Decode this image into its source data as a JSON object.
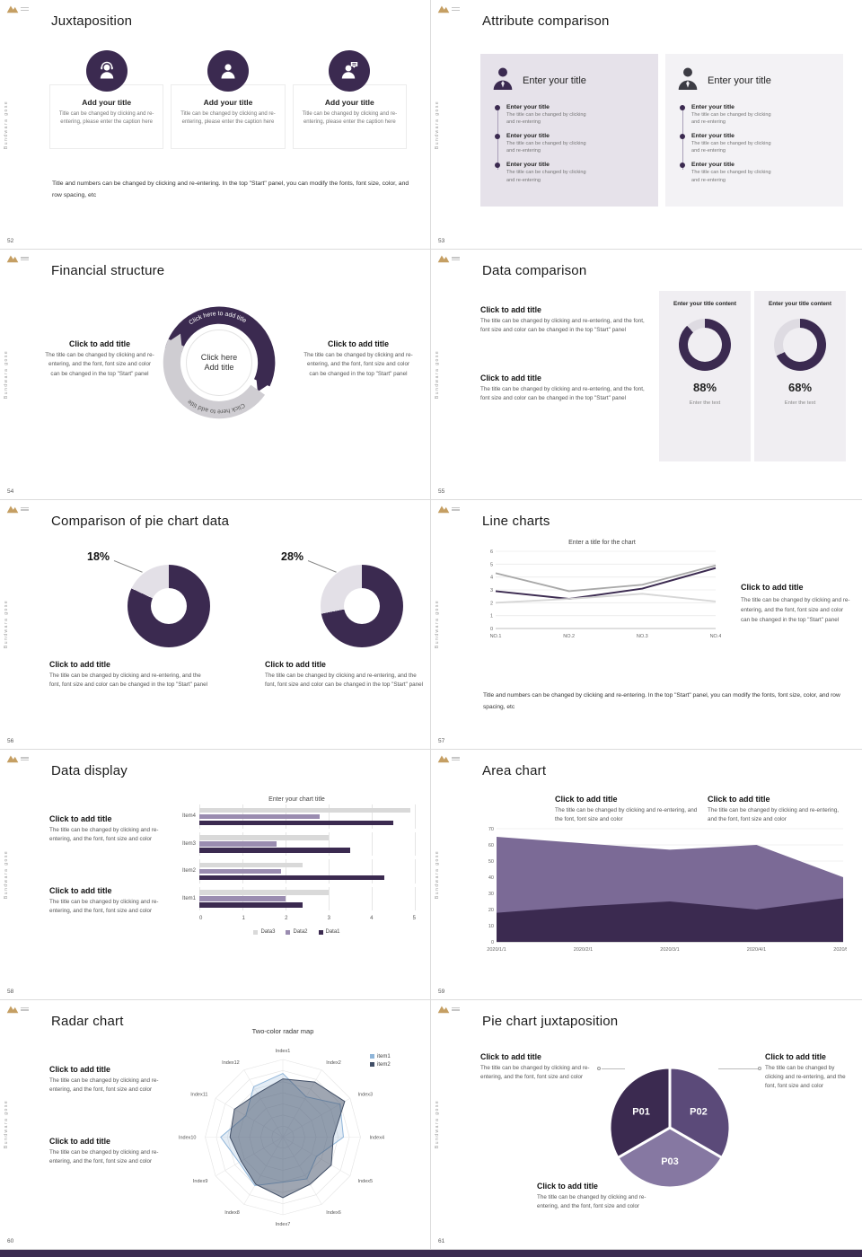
{
  "frame": {
    "vertical_text": "Bundwara gose",
    "accent_color": "#3b2a50",
    "logo_color": "#c59f63"
  },
  "slides": {
    "s52": {
      "number": "52",
      "title": "Juxtaposition",
      "cards": [
        {
          "icon": "person-headset-icon",
          "title": "Add your title",
          "caption": "Title can be changed by clicking and re-entering, please enter the caption here"
        },
        {
          "icon": "person-icon",
          "title": "Add your title",
          "caption": "Title can be changed by clicking and re-entering, please enter the caption here"
        },
        {
          "icon": "person-chat-icon",
          "title": "Add your title",
          "caption": "Title can be changed by clicking and re-entering, please enter the caption here"
        }
      ],
      "footer": "Title and numbers can be changed by clicking and re-entering. In the top \"Start\" panel, you can modify the fonts, font size, color, and row spacing, etc"
    },
    "s53": {
      "number": "53",
      "title": "Attribute comparison",
      "panels": [
        {
          "title": "Enter your title",
          "items": [
            {
              "title": "Enter your title",
              "desc": "The title can be changed by clicking and re-entering"
            },
            {
              "title": "Enter your title",
              "desc": "The title can be changed by clicking and re-entering"
            },
            {
              "title": "Enter your title",
              "desc": "The title can be changed by clicking and re-entering"
            }
          ]
        },
        {
          "title": "Enter your title",
          "items": [
            {
              "title": "Enter your title",
              "desc": "The title can be changed by clicking and re-entering"
            },
            {
              "title": "Enter your title",
              "desc": "The title can be changed by clicking and re-entering"
            },
            {
              "title": "Enter your title",
              "desc": "The title can be changed by clicking and re-entering"
            }
          ]
        }
      ]
    },
    "s54": {
      "number": "54",
      "title": "Financial structure",
      "arc_top": "Click here to add title",
      "arc_bottom": "Click here to add title",
      "center": {
        "line1": "Click here",
        "line2": "Add title"
      },
      "left": {
        "heading": "Click to add title",
        "body": "The title can be changed by clicking and re-entering, and the font, font size and color can be changed in the top \"Start\" panel"
      },
      "right": {
        "heading": "Click to add title",
        "body": "The title can be changed by clicking and re-entering, and the font, font size and color can be changed in the top \"Start\" panel"
      }
    },
    "s55": {
      "number": "55",
      "title": "Data comparison",
      "blocks": [
        {
          "heading": "Click to add title",
          "body": "The title can be changed by clicking and re-entering, and the font, font size and color can be changed in the top \"Start\" panel"
        },
        {
          "heading": "Click to add title",
          "body": "The title can be changed by clicking and re-entering, and the font, font size and color can be changed in the top \"Start\" panel"
        }
      ],
      "cards": [
        {
          "header": "Enter your title content",
          "value": 88,
          "label": "88%",
          "footer": "Enter the text",
          "color": "#3b2a50"
        },
        {
          "header": "Enter your title content",
          "value": 68,
          "label": "68%",
          "footer": "Enter the text",
          "color": "#3b2a50"
        }
      ]
    },
    "s56": {
      "number": "56",
      "title": "Comparison of pie chart data",
      "charts": [
        {
          "label": "18%",
          "value": 18,
          "color": "#3b2a50"
        },
        {
          "label": "28%",
          "value": 28,
          "color": "#3b2a50"
        }
      ],
      "blocks": [
        {
          "heading": "Click to add title",
          "body": "The title can be changed by clicking and re-entering, and the font, font size and color can be changed in the top \"Start\" panel"
        },
        {
          "heading": "Click to add title",
          "body": "The title can be changed by clicking and re-entering, and the font, font size and color can be changed in the top \"Start\" panel"
        }
      ]
    },
    "s57": {
      "number": "57",
      "title": "Line charts",
      "chart": {
        "type": "line",
        "title": "Enter a title for the chart",
        "x": [
          "NO.1",
          "NO.2",
          "NO.3",
          "NO.4"
        ],
        "ymax": 6,
        "yticks": [
          0,
          1,
          2,
          3,
          4,
          5,
          6
        ],
        "series": [
          {
            "color": "#3b2a50",
            "width": 2,
            "values": [
              2.9,
              2.3,
              3.1,
              4.7
            ]
          },
          {
            "color": "#a8a8a8",
            "width": 1.8,
            "values": [
              4.3,
              2.9,
              3.4,
              4.9
            ]
          },
          {
            "color": "#d6d6d6",
            "width": 1.8,
            "values": [
              2.0,
              2.3,
              2.7,
              2.1
            ]
          }
        ]
      },
      "block": {
        "heading": "Click to add title",
        "body": "The title can be changed by clicking and re-entering, and the font, font size and color can be changed in the top \"Start\" panel"
      },
      "footer": "Title and numbers can be changed by clicking and re-entering. In the top \"Start\" panel, you can modify the fonts, font size, color, and row spacing, etc"
    },
    "s58": {
      "number": "58",
      "title": "Data display",
      "blocks": [
        {
          "heading": "Click to add title",
          "body": "The title can be changed by clicking and re-entering, and the font, font size and color"
        },
        {
          "heading": "Click to add title",
          "body": "The title can be changed by clicking and re-entering, and the font, font size and color"
        }
      ],
      "chart": {
        "type": "bar",
        "title": "Enter your chart title",
        "categories": [
          "Item1",
          "Item2",
          "Item3",
          "Item4"
        ],
        "xmax": 5,
        "xticks": [
          0,
          1,
          2,
          3,
          4,
          5
        ],
        "series": [
          {
            "name": "Data1",
            "color": "#3b2a50",
            "values": [
              2.4,
              4.3,
              3.5,
              4.5
            ]
          },
          {
            "name": "Data2",
            "color": "#9a8cb0",
            "values": [
              2.0,
              1.9,
              1.8,
              2.8
            ]
          },
          {
            "name": "Data3",
            "color": "#d9d9d9",
            "values": [
              3.0,
              2.4,
              3.0,
              4.9
            ]
          }
        ],
        "legend": [
          "Data3",
          "Data2",
          "Data1"
        ]
      }
    },
    "s59": {
      "number": "59",
      "title": "Area chart",
      "blocks": [
        {
          "heading": "Click to add title",
          "body": "The title can be changed by clicking and re-entering, and the font, font size and color"
        },
        {
          "heading": "Click to add title",
          "body": "The title can be changed by clicking and re-entering, and the font, font size and color"
        }
      ],
      "chart": {
        "type": "area",
        "ymax": 70,
        "yticks": [
          0,
          10,
          20,
          30,
          40,
          50,
          60,
          70
        ],
        "x": [
          "2020/1/1",
          "2020/2/1",
          "2020/3/1",
          "2020/4/1",
          "2020/5/1"
        ],
        "series": [
          {
            "color": "#7b6a96",
            "values": [
              65,
              61,
              57,
              60,
              40
            ]
          },
          {
            "color": "#3b2a50",
            "values": [
              18,
              22,
              25,
              20,
              27
            ]
          }
        ]
      }
    },
    "s60": {
      "number": "60",
      "title": "Radar chart",
      "blocks": [
        {
          "heading": "Click to add title",
          "body": "The title can be changed by clicking and re-entering, and the font, font size and color"
        },
        {
          "heading": "Click to add title",
          "body": "The title can be changed by clicking and re-entering, and the font, font size and color"
        }
      ],
      "chart": {
        "type": "radar",
        "title": "Two-color radar map",
        "axes": [
          "Index1",
          "Index2",
          "Index3",
          "Index4",
          "Index5",
          "Index6",
          "Index7",
          "Index8",
          "Index9",
          "Index10",
          "Index11",
          "Index12"
        ],
        "series": [
          {
            "name": "item1",
            "color": "#8fb5d9",
            "fill": "rgba(143,181,217,0.25)",
            "values": [
              0.82,
              0.6,
              0.85,
              0.78,
              0.5,
              0.62,
              0.58,
              0.72,
              0.65,
              0.8,
              0.55,
              0.75
            ]
          },
          {
            "name": "item2",
            "color": "#404e66",
            "fill": "rgba(64,78,102,0.5)",
            "values": [
              0.75,
              0.82,
              0.92,
              0.65,
              0.72,
              0.7,
              0.78,
              0.7,
              0.62,
              0.68,
              0.72,
              0.65
            ]
          }
        ]
      }
    },
    "s61": {
      "number": "61",
      "title": "Pie chart juxtaposition",
      "blocks": {
        "left": {
          "heading": "Click to add title",
          "body": "The title can be changed by clicking and re-entering, and the font, font size and color"
        },
        "right": {
          "heading": "Click to add title",
          "body": "The title can be changed by clicking and re-entering, and the font, font size and color"
        },
        "bottom": {
          "heading": "Click to add title",
          "body": "The title can be changed by clicking and re-entering, and the font, font size and color"
        }
      },
      "pie": {
        "type": "pie",
        "segments": [
          {
            "label": "P02",
            "color": "#5b4a79",
            "from": 0,
            "to": 120
          },
          {
            "label": "P03",
            "color": "#8678a2",
            "from": 120,
            "to": 240
          },
          {
            "label": "P01",
            "color": "#3b2a50",
            "from": 240,
            "to": 360
          }
        ]
      }
    }
  }
}
